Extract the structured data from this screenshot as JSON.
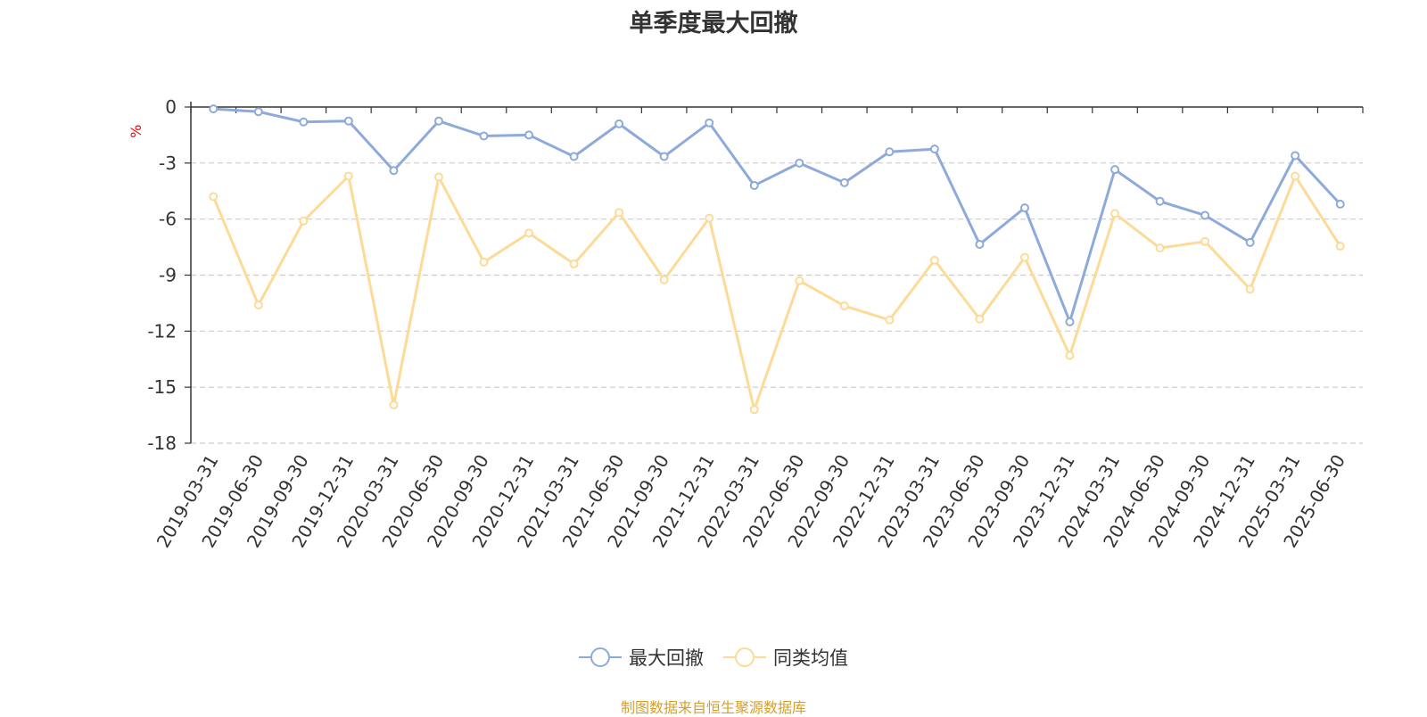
{
  "chart_data": {
    "type": "line",
    "title": "单季度最大回撤",
    "ylabel": "%",
    "ylim": [
      -18,
      0
    ],
    "yticks": [
      0,
      -3,
      -6,
      -9,
      -12,
      -15,
      -18
    ],
    "grid": true,
    "legend_position": "bottom-center",
    "categories": [
      "2019-03-31",
      "2019-06-30",
      "2019-09-30",
      "2019-12-31",
      "2020-03-31",
      "2020-06-30",
      "2020-09-30",
      "2020-12-31",
      "2021-03-31",
      "2021-06-30",
      "2021-09-30",
      "2021-12-31",
      "2022-03-31",
      "2022-06-30",
      "2022-09-30",
      "2022-12-31",
      "2023-03-31",
      "2023-06-30",
      "2023-09-30",
      "2023-12-31",
      "2024-03-31",
      "2024-06-30",
      "2024-09-30",
      "2024-12-31",
      "2025-03-31",
      "2025-06-30"
    ],
    "series": [
      {
        "name": "最大回撤",
        "color": "#8eaadb",
        "values": [
          -0.1,
          -0.25,
          -0.8,
          -0.75,
          -3.4,
          -0.75,
          -1.55,
          -1.5,
          -2.65,
          -0.9,
          -2.65,
          -0.85,
          -4.2,
          -3.0,
          -4.05,
          -2.4,
          -2.25,
          -7.35,
          -5.4,
          -11.5,
          -3.35,
          -5.05,
          -5.8,
          -7.25,
          -2.6,
          -5.2
        ]
      },
      {
        "name": "同类均值",
        "color": "#fddb97",
        "values": [
          -4.8,
          -10.6,
          -6.1,
          -3.7,
          -15.95,
          -3.75,
          -8.3,
          -6.75,
          -8.4,
          -5.65,
          -9.25,
          -5.95,
          -16.2,
          -9.3,
          -10.65,
          -11.4,
          -8.2,
          -11.35,
          -8.05,
          -13.3,
          -5.7,
          -7.55,
          -7.2,
          -9.75,
          -3.7,
          -7.45
        ]
      }
    ]
  },
  "source_note": "制图数据来自恒生聚源数据库"
}
